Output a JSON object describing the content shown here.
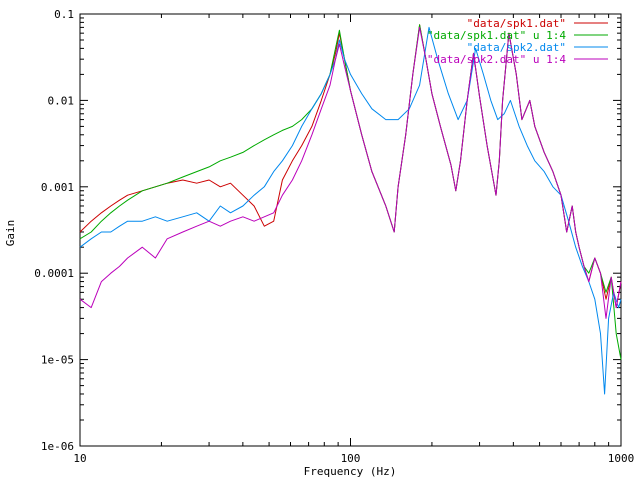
{
  "chart_data": {
    "type": "line",
    "title": "",
    "xlabel": "Frequency (Hz)",
    "ylabel": "Gain",
    "x_scale": "log",
    "y_scale": "log",
    "xlim": [
      10,
      1000
    ],
    "ylim": [
      1e-06,
      0.1
    ],
    "grid": false,
    "legend_position": "top-right",
    "x_ticks": [
      {
        "value": 10,
        "label": "10"
      },
      {
        "value": 100,
        "label": "100"
      },
      {
        "value": 1000,
        "label": "1000"
      }
    ],
    "y_ticks": [
      {
        "value": 0.1,
        "label": "0.1"
      },
      {
        "value": 0.01,
        "label": "0.01"
      },
      {
        "value": 0.001,
        "label": "0.001"
      },
      {
        "value": 0.0001,
        "label": "0.0001"
      },
      {
        "value": 1e-05,
        "label": "1e-05"
      },
      {
        "value": 1e-06,
        "label": "1e-06"
      }
    ],
    "series": [
      {
        "name": "\"data/spk1.dat\"",
        "color": "#cc0000",
        "x": [
          10,
          11,
          12,
          13,
          14,
          15,
          17,
          19,
          21,
          24,
          27,
          30,
          33,
          36,
          40,
          44,
          48,
          52,
          56,
          61,
          66,
          72,
          78,
          84,
          88,
          91,
          95,
          100,
          110,
          120,
          135,
          145,
          150,
          160,
          170,
          180,
          190,
          200,
          215,
          235,
          245,
          255,
          270,
          285,
          300,
          320,
          345,
          355,
          365,
          385,
          410,
          430,
          460,
          480,
          520,
          560,
          600,
          630,
          660,
          680,
          700,
          730,
          760,
          800,
          840,
          880,
          920,
          960,
          1000
        ],
        "y": [
          0.0003,
          0.0004,
          0.0005,
          0.0006,
          0.0007,
          0.0008,
          0.0009,
          0.001,
          0.0011,
          0.0012,
          0.0011,
          0.0012,
          0.001,
          0.0011,
          0.0008,
          0.0006,
          0.00035,
          0.0004,
          0.0012,
          0.002,
          0.003,
          0.005,
          0.01,
          0.02,
          0.035,
          0.06,
          0.03,
          0.013,
          0.004,
          0.0015,
          0.0006,
          0.0003,
          0.001,
          0.004,
          0.02,
          0.075,
          0.03,
          0.012,
          0.005,
          0.0018,
          0.0009,
          0.002,
          0.01,
          0.035,
          0.011,
          0.003,
          0.0008,
          0.002,
          0.01,
          0.06,
          0.02,
          0.006,
          0.01,
          0.005,
          0.0025,
          0.0015,
          0.0008,
          0.0003,
          0.0006,
          0.0003,
          0.0002,
          0.00012,
          8e-05,
          0.00015,
          0.0001,
          5e-05,
          9e-05,
          4e-05,
          8e-05
        ]
      },
      {
        "name": "\"data/spk1.dat\" u 1:4",
        "color": "#00aa00",
        "x": [
          10,
          11,
          12,
          13,
          14,
          15,
          17,
          19,
          21,
          24,
          27,
          30,
          33,
          36,
          40,
          44,
          48,
          52,
          56,
          61,
          66,
          72,
          78,
          84,
          88,
          91,
          95,
          100,
          110,
          120,
          135,
          145,
          150,
          160,
          170,
          180,
          190,
          200,
          215,
          235,
          245,
          255,
          270,
          285,
          300,
          320,
          345,
          355,
          365,
          385,
          410,
          430,
          460,
          480,
          520,
          560,
          600,
          630,
          660,
          680,
          700,
          730,
          760,
          800,
          840,
          880,
          920,
          960,
          1000
        ],
        "y": [
          0.00025,
          0.0003,
          0.0004,
          0.0005,
          0.0006,
          0.0007,
          0.0009,
          0.001,
          0.0011,
          0.0013,
          0.0015,
          0.0017,
          0.002,
          0.0022,
          0.0025,
          0.003,
          0.0035,
          0.004,
          0.0045,
          0.005,
          0.006,
          0.008,
          0.012,
          0.02,
          0.04,
          0.065,
          0.03,
          0.013,
          0.004,
          0.0015,
          0.0006,
          0.0003,
          0.001,
          0.004,
          0.02,
          0.075,
          0.03,
          0.012,
          0.005,
          0.0018,
          0.0009,
          0.002,
          0.01,
          0.035,
          0.011,
          0.003,
          0.0008,
          0.002,
          0.01,
          0.06,
          0.02,
          0.006,
          0.01,
          0.005,
          0.0025,
          0.0015,
          0.0008,
          0.0003,
          0.0006,
          0.0003,
          0.0002,
          0.00012,
          0.0001,
          0.00015,
          0.0001,
          6e-05,
          9e-05,
          2e-05,
          1e-05
        ]
      },
      {
        "name": "\"data/spk2.dat\"",
        "color": "#0088ee",
        "x": [
          10,
          11,
          12,
          13,
          14,
          15,
          17,
          19,
          21,
          24,
          27,
          30,
          33,
          36,
          40,
          44,
          48,
          52,
          56,
          61,
          66,
          72,
          78,
          84,
          88,
          91,
          95,
          100,
          110,
          120,
          135,
          150,
          165,
          180,
          195,
          210,
          230,
          250,
          270,
          290,
          310,
          330,
          350,
          370,
          390,
          420,
          450,
          480,
          520,
          560,
          600,
          640,
          680,
          720,
          760,
          800,
          840,
          870,
          900,
          940,
          980,
          1000
        ],
        "y": [
          0.0002,
          0.00025,
          0.0003,
          0.0003,
          0.00035,
          0.0004,
          0.0004,
          0.00045,
          0.0004,
          0.00045,
          0.0005,
          0.0004,
          0.0006,
          0.0005,
          0.0006,
          0.0008,
          0.001,
          0.0015,
          0.002,
          0.003,
          0.005,
          0.008,
          0.012,
          0.02,
          0.03,
          0.05,
          0.03,
          0.02,
          0.012,
          0.008,
          0.006,
          0.006,
          0.008,
          0.015,
          0.07,
          0.03,
          0.012,
          0.006,
          0.01,
          0.04,
          0.02,
          0.01,
          0.006,
          0.007,
          0.01,
          0.005,
          0.003,
          0.002,
          0.0015,
          0.001,
          0.0008,
          0.0004,
          0.0002,
          0.00012,
          8e-05,
          5e-05,
          2e-05,
          4e-06,
          3e-05,
          6e-05,
          4e-05,
          5e-05
        ]
      },
      {
        "name": "\"data/spk2.dat\" u 1:4",
        "color": "#bb00bb",
        "x": [
          10,
          11,
          12,
          13,
          14,
          15,
          17,
          19,
          21,
          24,
          27,
          30,
          33,
          36,
          40,
          44,
          48,
          52,
          56,
          61,
          66,
          72,
          78,
          84,
          88,
          91,
          95,
          100,
          110,
          120,
          135,
          145,
          150,
          160,
          170,
          180,
          190,
          200,
          215,
          235,
          245,
          255,
          270,
          285,
          300,
          320,
          345,
          355,
          365,
          385,
          410,
          430,
          460,
          480,
          520,
          560,
          600,
          630,
          660,
          680,
          700,
          730,
          760,
          800,
          840,
          880,
          920,
          960,
          1000
        ],
        "y": [
          5e-05,
          4e-05,
          8e-05,
          0.0001,
          0.00012,
          0.00015,
          0.0002,
          0.00015,
          0.00025,
          0.0003,
          0.00035,
          0.0004,
          0.00035,
          0.0004,
          0.00045,
          0.0004,
          0.00045,
          0.0005,
          0.0008,
          0.0012,
          0.002,
          0.004,
          0.008,
          0.015,
          0.03,
          0.045,
          0.025,
          0.013,
          0.004,
          0.0015,
          0.0006,
          0.0003,
          0.001,
          0.004,
          0.02,
          0.07,
          0.03,
          0.012,
          0.005,
          0.0018,
          0.0009,
          0.002,
          0.01,
          0.035,
          0.011,
          0.003,
          0.0008,
          0.002,
          0.01,
          0.06,
          0.02,
          0.006,
          0.01,
          0.005,
          0.0025,
          0.0015,
          0.0008,
          0.0003,
          0.0006,
          0.0003,
          0.0002,
          0.00012,
          8e-05,
          0.00015,
          0.0001,
          3e-05,
          9e-05,
          4e-05,
          8e-05
        ]
      }
    ]
  }
}
